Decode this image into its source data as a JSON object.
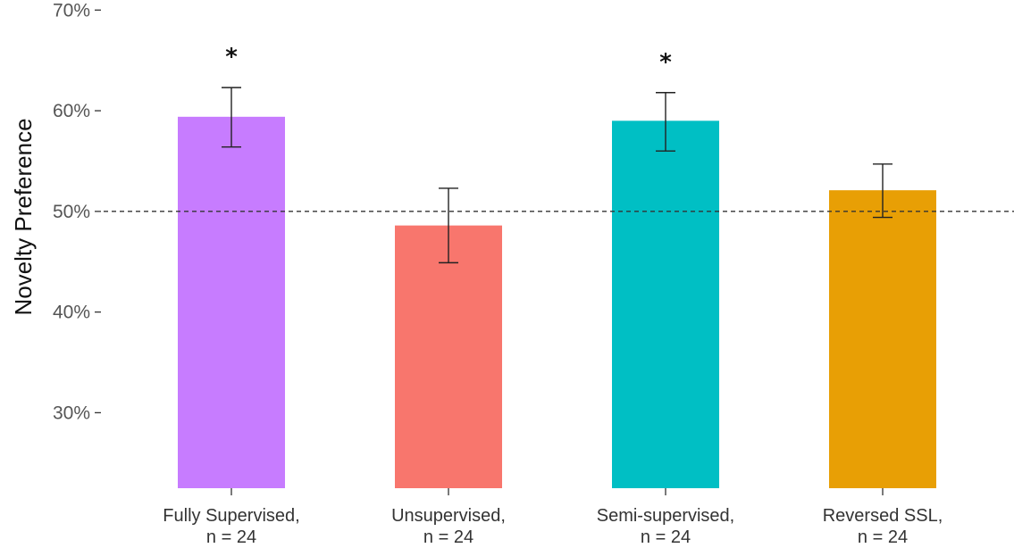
{
  "chart_data": {
    "type": "bar",
    "ylabel": "Novelty Preference",
    "xlabel": "",
    "ylim": [
      22.5,
      71
    ],
    "y_ticks": [
      30,
      40,
      50,
      60,
      70
    ],
    "y_tick_labels": [
      "30%",
      "40%",
      "50%",
      "60%",
      "70%"
    ],
    "reference_line": 50,
    "categories": [
      [
        "Fully Supervised,",
        "n = 24"
      ],
      [
        "Unsupervised,",
        "n = 24"
      ],
      [
        "Semi-supervised,",
        "n = 24"
      ],
      [
        "Reversed SSL,",
        "n = 24"
      ]
    ],
    "values": [
      59.4,
      48.6,
      59.0,
      52.1
    ],
    "error_low": [
      56.4,
      44.9,
      56.0,
      49.4
    ],
    "error_high": [
      62.3,
      52.3,
      61.8,
      54.7
    ],
    "significance": [
      "*",
      "",
      "*",
      ""
    ],
    "colors": [
      "#c77cff",
      "#f8766d",
      "#00bfc4",
      "#e89f05"
    ],
    "grid": false
  }
}
